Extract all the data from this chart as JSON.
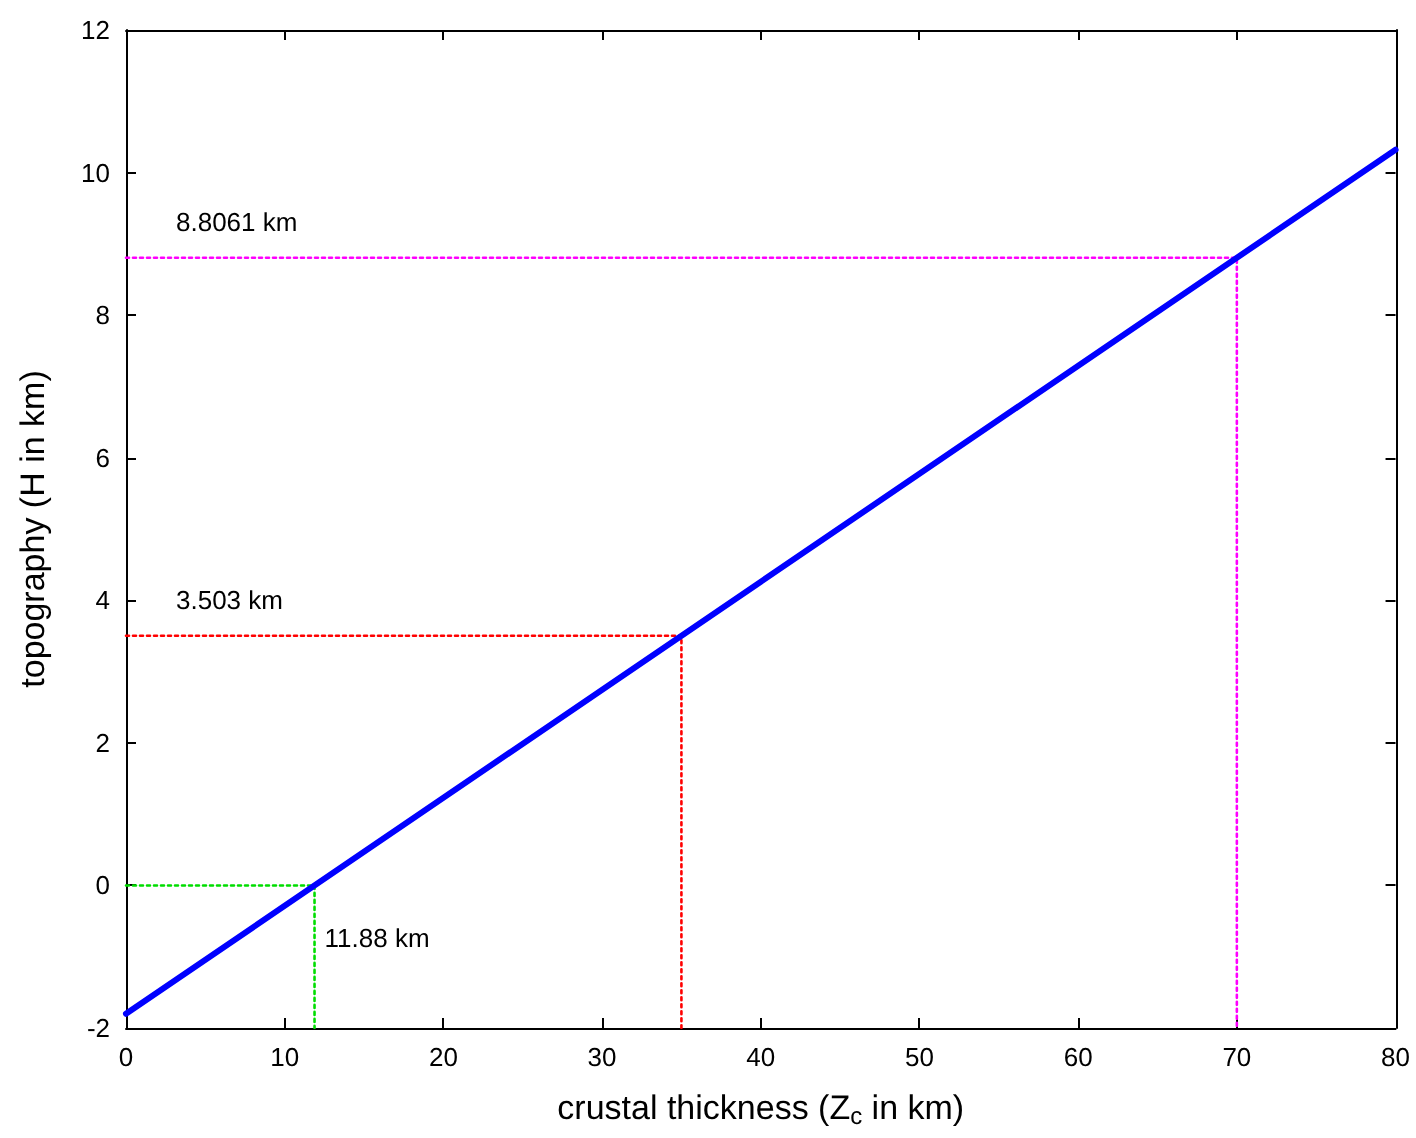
{
  "chart_data": {
    "type": "line",
    "xlabel": "crustal thickness (Z$_{c}$ in km)",
    "ylabel": "topography (H in km)",
    "xlim": [
      0,
      80
    ],
    "xticks": [
      0,
      10,
      20,
      30,
      40,
      50,
      60,
      70,
      80
    ],
    "ylim": [
      -2,
      12
    ],
    "yticks": [
      -2,
      0,
      2,
      4,
      6,
      8,
      10,
      12
    ],
    "grid": false,
    "marker": "none",
    "series": [
      {
        "color": "#0000ff",
        "x": [
          0,
          80
        ],
        "values": [
          -1.8,
          10.32
        ],
        "line_style": "solid"
      },
      {
        "color": "#ff00ff",
        "x": [
          0,
          70,
          70
        ],
        "values": [
          8.8061,
          8.8061,
          -2
        ],
        "line_style": "dotted"
      },
      {
        "color": "#ff0000",
        "x": [
          0,
          35,
          35
        ],
        "values": [
          3.503,
          3.503,
          -2
        ],
        "line_style": "dotted"
      },
      {
        "color": "#00dd00",
        "x": [
          0,
          11.88,
          11.88
        ],
        "values": [
          0,
          0,
          -2
        ],
        "line_style": "dotted"
      }
    ],
    "annotations": [
      "8.8061 km",
      "3.503 km",
      "11.88 km"
    ]
  }
}
